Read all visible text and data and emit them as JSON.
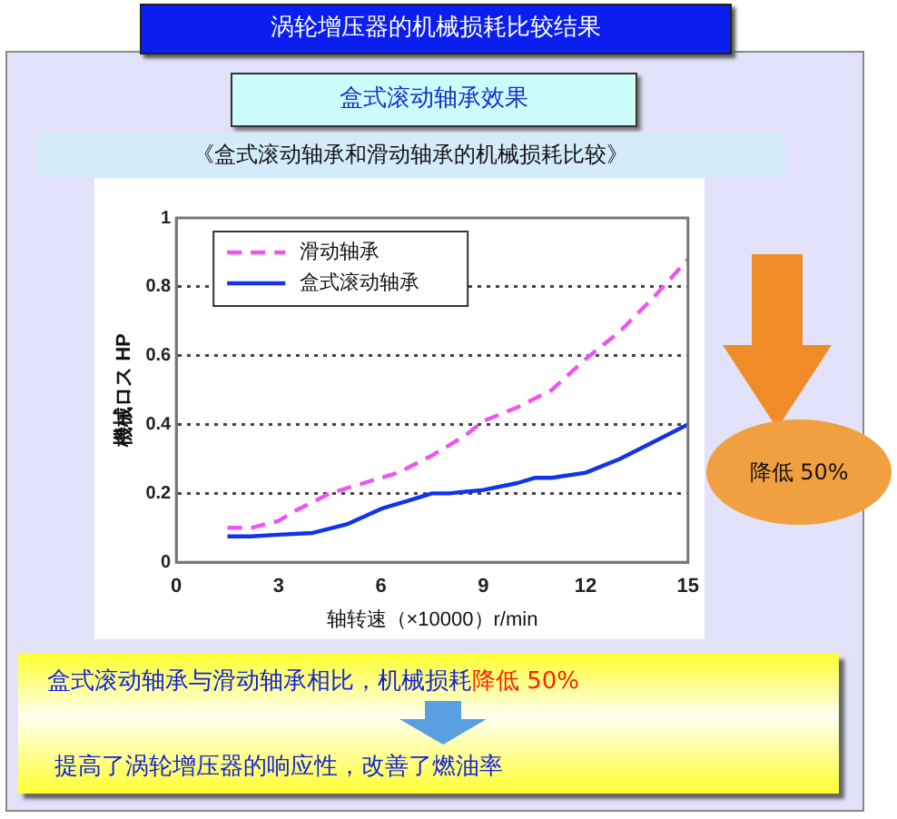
{
  "chart_data": {
    "type": "line",
    "title": "涡轮增压器的机械损耗比较结果",
    "subtitle": "盒式滚动轴承效果",
    "xlabel": "轴转速（×10000）r/min",
    "ylabel": "機械ロス HP",
    "xlim": [
      0,
      15
    ],
    "xticks": [
      0,
      3,
      6,
      9,
      12,
      15
    ],
    "ylim": [
      0,
      1
    ],
    "yticks": [
      0,
      0.2,
      0.4,
      0.6,
      0.8,
      1
    ],
    "grid": "y",
    "legend": "top left",
    "marker": "none",
    "series": [
      {
        "name": "滑动轴承",
        "color": "#ee55ee",
        "line_style": "dashed",
        "x": [
          1.5,
          2.2,
          3,
          3.5,
          4.5,
          5.5,
          6.5,
          7.5,
          8.5,
          9,
          10,
          11,
          12,
          13,
          14,
          15
        ],
        "values": [
          0.1,
          0.1,
          0.12,
          0.15,
          0.2,
          0.23,
          0.26,
          0.31,
          0.37,
          0.41,
          0.45,
          0.5,
          0.59,
          0.67,
          0.77,
          0.88
        ]
      },
      {
        "name": "盒式滚动轴承",
        "color": "#1133ee",
        "line_style": "solid",
        "x": [
          1.5,
          2.2,
          3,
          4,
          5,
          6,
          7,
          7.5,
          8,
          9,
          10,
          10.5,
          11,
          12,
          13,
          14,
          15
        ],
        "values": [
          0.075,
          0.075,
          0.08,
          0.085,
          0.11,
          0.155,
          0.185,
          0.2,
          0.2,
          0.21,
          0.23,
          0.245,
          0.245,
          0.26,
          0.3,
          0.35,
          0.4
        ]
      }
    ],
    "annotations": [
      "《盒式滚动轴承和滑动轴承的机械损耗比较》",
      "降低 50%",
      "盒式滚动轴承与滑动轴承相比，机械损耗",
      "降低 50%",
      "提高了涡轮增压器的响应性，改善了燃油率"
    ]
  }
}
